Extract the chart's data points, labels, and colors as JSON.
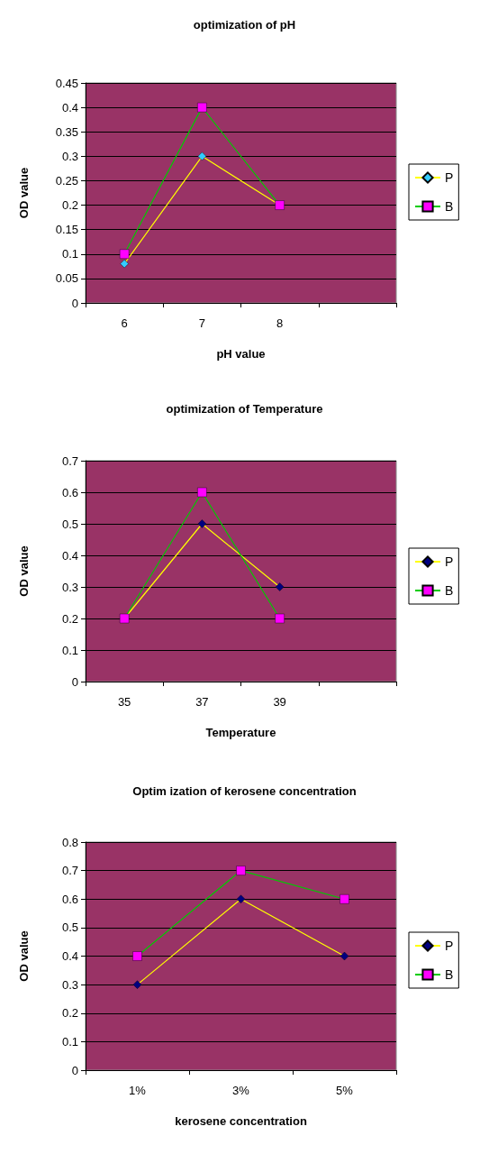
{
  "chart_data": [
    {
      "type": "line",
      "title": "optimization of pH",
      "xlabel": "pH value",
      "ylabel": "OD value",
      "categories": [
        "6",
        "7",
        "8",
        null
      ],
      "ylim": [
        0,
        0.45
      ],
      "yticks": [
        0,
        0.05,
        0.1,
        0.15,
        0.2,
        0.25,
        0.3,
        0.35,
        0.4,
        0.45
      ],
      "grid": "y",
      "legend": "right",
      "line_style": "solid",
      "series": [
        {
          "name": "P",
          "color": "#ffff00",
          "colors": [
            "#33ccff",
            "#33ccff",
            "#33ccff",
            null
          ],
          "marker": "diamond",
          "values": [
            0.08,
            0.3,
            0.2,
            null
          ]
        },
        {
          "name": "B",
          "color": "#00cc00",
          "colors": [
            "#ff00ff",
            "#ff00ff",
            "#ff00ff",
            null
          ],
          "marker": "square",
          "values": [
            0.1,
            0.4,
            0.2,
            null
          ]
        }
      ]
    },
    {
      "type": "line",
      "title": "optimization of Temperature",
      "xlabel": "Temperature",
      "ylabel": "OD value",
      "categories": [
        "35",
        "37",
        "39",
        null
      ],
      "ylim": [
        0,
        0.7
      ],
      "yticks": [
        0,
        0.1,
        0.2,
        0.3,
        0.4,
        0.5,
        0.6,
        0.7
      ],
      "grid": "y",
      "legend": "right",
      "line_style": "solid",
      "series": [
        {
          "name": "P",
          "color": "#ffff00",
          "colors": [
            "#000080",
            "#000080",
            "#000080",
            null
          ],
          "marker": "diamond",
          "values": [
            0.2,
            0.5,
            0.3,
            null
          ]
        },
        {
          "name": "B",
          "color": "#00cc00",
          "colors": [
            "#ff00ff",
            "#ff00ff",
            "#ff00ff",
            null
          ],
          "marker": "square",
          "values": [
            0.2,
            0.6,
            0.2,
            null
          ]
        }
      ]
    },
    {
      "type": "line",
      "title": "Optim ization of kerosene concentration",
      "xlabel": "kerosene concentration",
      "ylabel": "OD value",
      "categories": [
        "1%",
        "3%",
        "5%"
      ],
      "ylim": [
        0,
        0.8
      ],
      "yticks": [
        0,
        0.1,
        0.2,
        0.3,
        0.4,
        0.5,
        0.6,
        0.7,
        0.8
      ],
      "grid": "y",
      "legend": "right",
      "line_style": "solid",
      "series": [
        {
          "name": "P",
          "color": "#ffff00",
          "colors": [
            "#000080",
            "#000080",
            "#000080"
          ],
          "marker": "diamond",
          "values": [
            0.3,
            0.6,
            0.4
          ]
        },
        {
          "name": "B",
          "color": "#00cc00",
          "colors": [
            "#ff00ff",
            "#ff00ff",
            "#ff00ff"
          ],
          "marker": "square",
          "values": [
            0.4,
            0.7,
            0.6
          ]
        }
      ]
    }
  ]
}
